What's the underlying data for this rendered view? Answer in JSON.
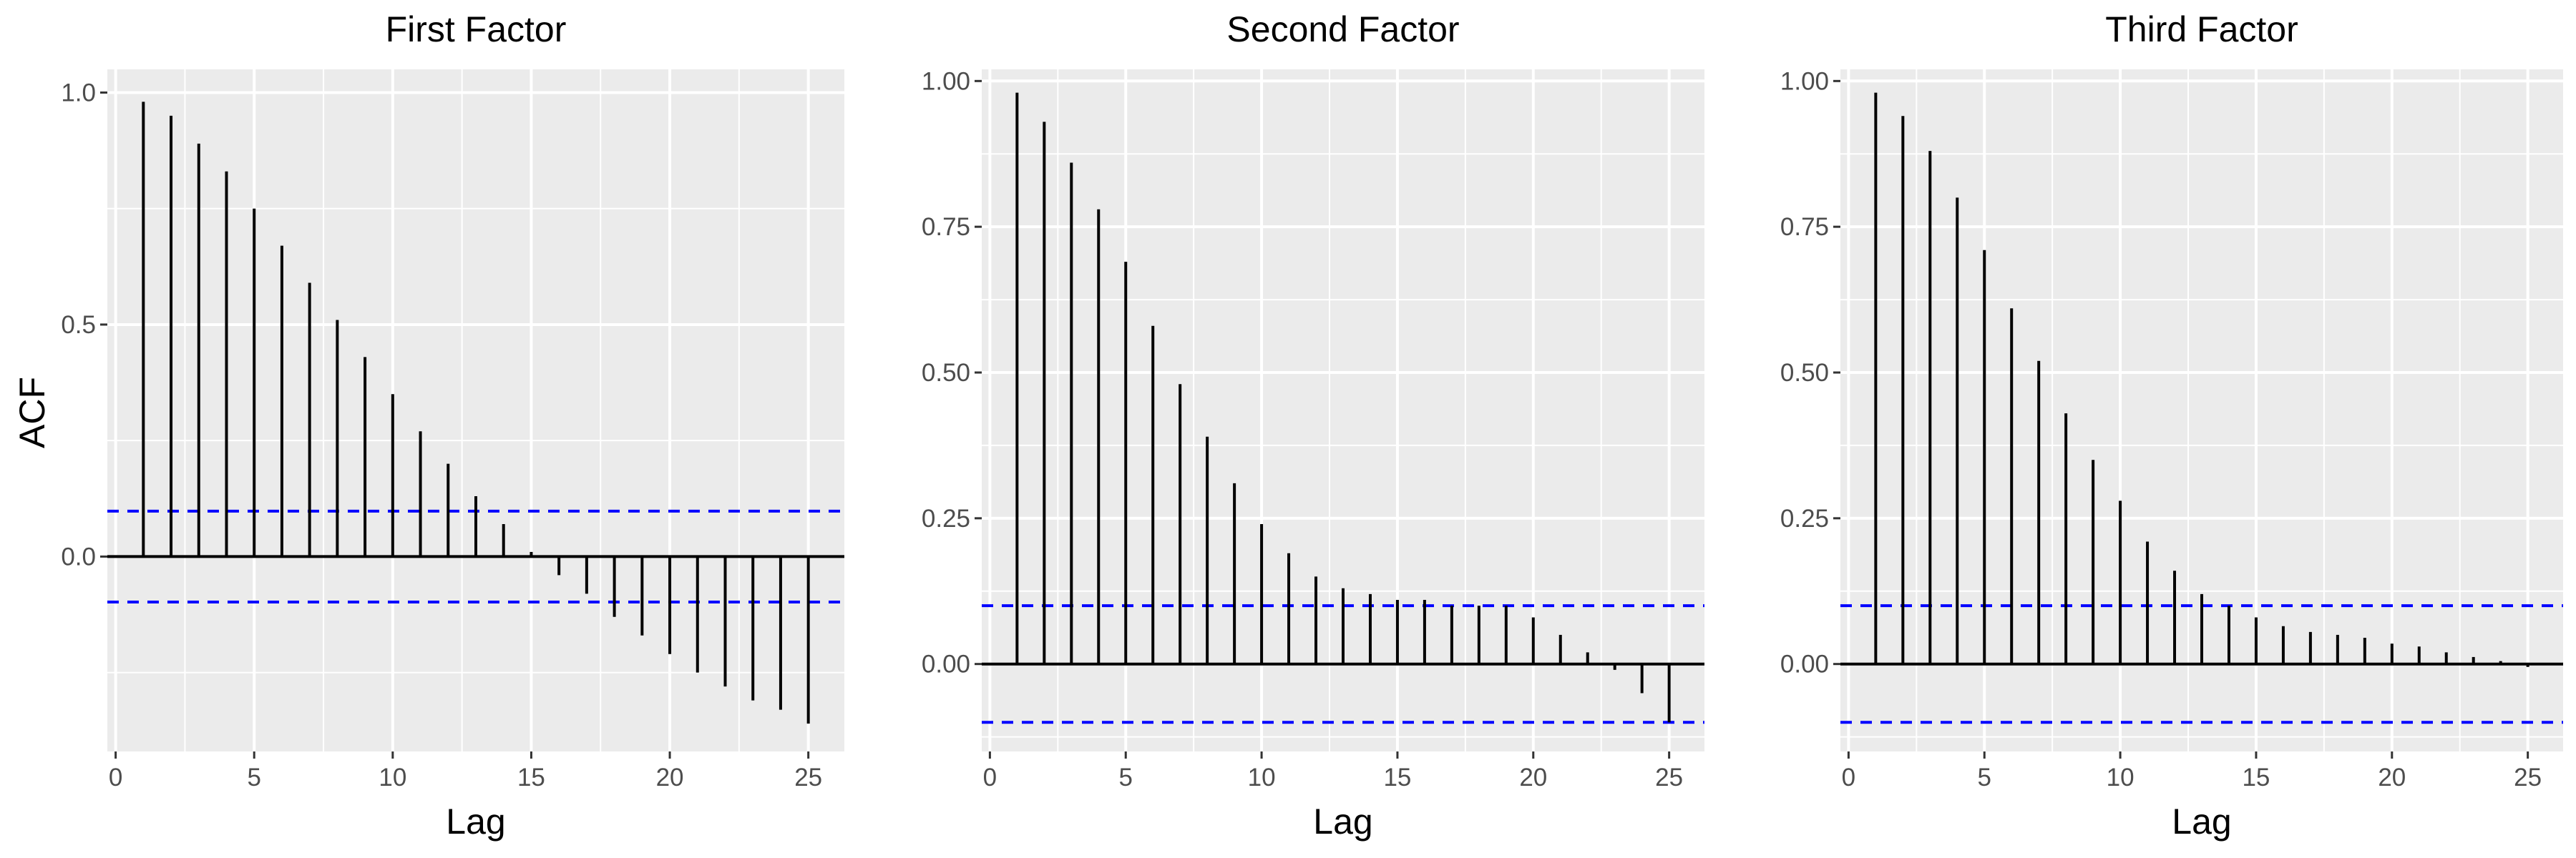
{
  "figure": {
    "ylabel": "ACF"
  },
  "colors": {
    "panel_bg": "#EBEBEB",
    "grid": "#FFFFFF",
    "spike": "#000000",
    "ci_line": "#0000FF"
  },
  "chart_data": [
    {
      "type": "bar",
      "title": "First Factor",
      "xlabel": "Lag",
      "ylabel": "ACF",
      "x": [
        1,
        2,
        3,
        4,
        5,
        6,
        7,
        8,
        9,
        10,
        11,
        12,
        13,
        14,
        15,
        16,
        17,
        18,
        19,
        20,
        21,
        22,
        23,
        24,
        25
      ],
      "values": [
        0.98,
        0.95,
        0.89,
        0.83,
        0.75,
        0.67,
        0.59,
        0.51,
        0.43,
        0.35,
        0.27,
        0.2,
        0.13,
        0.07,
        0.01,
        -0.04,
        -0.08,
        -0.13,
        -0.17,
        -0.21,
        -0.25,
        -0.28,
        -0.31,
        -0.33,
        -0.36
      ],
      "ci": 0.098,
      "xlim": [
        -0.3,
        26.3
      ],
      "ylim": [
        -0.42,
        1.05
      ],
      "xticks": [
        0,
        5,
        10,
        15,
        20,
        25
      ],
      "yticks": [
        0.0,
        0.5,
        1.0
      ],
      "ytick_labels": [
        "0.0",
        "0.5",
        "1.0"
      ],
      "yminor": [
        -0.25,
        0.25,
        0.75
      ],
      "grid": true
    },
    {
      "type": "bar",
      "title": "Second Factor",
      "xlabel": "Lag",
      "ylabel": "",
      "x": [
        1,
        2,
        3,
        4,
        5,
        6,
        7,
        8,
        9,
        10,
        11,
        12,
        13,
        14,
        15,
        16,
        17,
        18,
        19,
        20,
        21,
        22,
        23,
        24,
        25
      ],
      "values": [
        0.98,
        0.93,
        0.86,
        0.78,
        0.69,
        0.58,
        0.48,
        0.39,
        0.31,
        0.24,
        0.19,
        0.15,
        0.13,
        0.12,
        0.11,
        0.11,
        0.1,
        0.1,
        0.1,
        0.08,
        0.05,
        0.02,
        -0.01,
        -0.05,
        -0.1
      ],
      "ci": 0.1,
      "xlim": [
        -0.3,
        26.3
      ],
      "ylim": [
        -0.15,
        1.02
      ],
      "xticks": [
        0,
        5,
        10,
        15,
        20,
        25
      ],
      "yticks": [
        0.0,
        0.25,
        0.5,
        0.75,
        1.0
      ],
      "ytick_labels": [
        "0.00",
        "0.25",
        "0.50",
        "0.75",
        "1.00"
      ],
      "yminor": [
        -0.125,
        0.125,
        0.375,
        0.625,
        0.875
      ],
      "grid": true
    },
    {
      "type": "bar",
      "title": "Third Factor",
      "xlabel": "Lag",
      "ylabel": "",
      "x": [
        1,
        2,
        3,
        4,
        5,
        6,
        7,
        8,
        9,
        10,
        11,
        12,
        13,
        14,
        15,
        16,
        17,
        18,
        19,
        20,
        21,
        22,
        23,
        24,
        25
      ],
      "values": [
        0.98,
        0.94,
        0.88,
        0.8,
        0.71,
        0.61,
        0.52,
        0.43,
        0.35,
        0.28,
        0.21,
        0.16,
        0.12,
        0.1,
        0.08,
        0.065,
        0.055,
        0.05,
        0.045,
        0.035,
        0.03,
        0.02,
        0.012,
        0.005,
        -0.005
      ],
      "ci": 0.1,
      "xlim": [
        -0.3,
        26.3
      ],
      "ylim": [
        -0.15,
        1.02
      ],
      "xticks": [
        0,
        5,
        10,
        15,
        20,
        25
      ],
      "yticks": [
        0.0,
        0.25,
        0.5,
        0.75,
        1.0
      ],
      "ytick_labels": [
        "0.00",
        "0.25",
        "0.50",
        "0.75",
        "1.00"
      ],
      "yminor": [
        -0.125,
        0.125,
        0.375,
        0.625,
        0.875
      ],
      "grid": true
    }
  ]
}
